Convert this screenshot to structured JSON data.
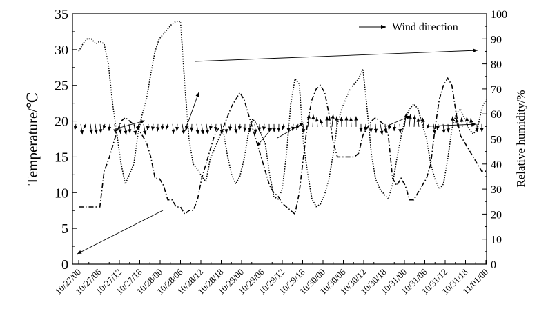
{
  "chart_data": {
    "type": "line",
    "title": "",
    "xlabel": "",
    "ylabel": "Temperature/℃",
    "y2label": "Relative humidity/%",
    "ylim": [
      0,
      35
    ],
    "y2lim": [
      0,
      100
    ],
    "y_ticks": [
      "0",
      "5",
      "10",
      "15",
      "20",
      "25",
      "30",
      "35"
    ],
    "y2_ticks": [
      "0",
      "10",
      "20",
      "30",
      "40",
      "50",
      "60",
      "70",
      "80",
      "90",
      "100"
    ],
    "x_ticks": [
      "10/27/00",
      "10/27/06",
      "10/27/12",
      "10/27/18",
      "10/28/00",
      "10/28/06",
      "10/28/12",
      "10/28/18",
      "10/29/00",
      "10/29/06",
      "10/29/12",
      "10/29/18",
      "10/30/00",
      "10/30/06",
      "10/30/12",
      "10/30/18",
      "10/31/00",
      "10/31/06",
      "10/31/12",
      "10/31/18",
      "11/01/00"
    ],
    "legend": {
      "label": "Wind direction",
      "placement": "top-right"
    },
    "series": [
      {
        "style": "dotted",
        "axis": "right",
        "x": [
          0,
          1,
          2,
          3,
          4,
          5,
          6,
          7,
          8,
          9,
          10,
          11,
          12,
          13,
          14,
          15,
          16,
          17,
          18,
          19,
          20,
          21,
          22,
          23,
          24,
          25,
          26,
          27,
          28,
          29,
          30,
          31,
          32,
          33,
          34,
          35,
          36,
          37,
          38,
          39,
          40,
          41,
          42,
          43,
          44,
          45,
          46,
          47,
          48,
          49,
          50,
          51,
          52,
          53,
          54,
          55,
          56,
          57,
          58,
          59,
          60,
          61,
          62,
          63,
          64,
          65,
          66,
          67,
          68,
          69,
          70,
          71,
          72,
          73,
          74,
          75,
          76,
          77,
          78,
          79,
          80,
          81,
          82,
          83,
          84,
          85,
          86,
          87,
          88,
          89,
          90,
          91,
          92,
          93,
          94,
          95,
          96
        ],
        "values": [
          85,
          88,
          90,
          90,
          88,
          89,
          88,
          80,
          64,
          52,
          40,
          32,
          36,
          40,
          52,
          60,
          66,
          76,
          85,
          90,
          92,
          94,
          96,
          97,
          97,
          72,
          50,
          40,
          38,
          35,
          33,
          42,
          46,
          50,
          54,
          44,
          36,
          32,
          35,
          42,
          52,
          58,
          56,
          52,
          48,
          36,
          27,
          26,
          30,
          44,
          64,
          74,
          72,
          48,
          36,
          26,
          23,
          24,
          28,
          34,
          44,
          56,
          62,
          66,
          70,
          72,
          74,
          78,
          62,
          44,
          34,
          30,
          28,
          26,
          32,
          42,
          51,
          58,
          62,
          64,
          62,
          56,
          50,
          40,
          34,
          30,
          32,
          42,
          54,
          60,
          62,
          58,
          54,
          52,
          54,
          62,
          66
        ]
      },
      {
        "style": "dash-dot",
        "axis": "left",
        "x": [
          0,
          1,
          2,
          3,
          4,
          5,
          6,
          7,
          8,
          9,
          10,
          11,
          12,
          13,
          14,
          15,
          16,
          17,
          18,
          19,
          20,
          21,
          22,
          23,
          24,
          25,
          26,
          27,
          28,
          29,
          30,
          31,
          32,
          33,
          34,
          35,
          36,
          37,
          38,
          39,
          40,
          41,
          42,
          43,
          44,
          45,
          46,
          47,
          48,
          49,
          50,
          51,
          52,
          53,
          54,
          55,
          56,
          57,
          58,
          59,
          60,
          61,
          62,
          63,
          64,
          65,
          66,
          67,
          68,
          69,
          70,
          71,
          72,
          73,
          74,
          75,
          76,
          77,
          78,
          79,
          80,
          81,
          82,
          83,
          84,
          85,
          86,
          87,
          88,
          89,
          90,
          91,
          92,
          93,
          94,
          95,
          96
        ],
        "values": [
          8,
          8,
          8,
          8,
          8,
          8,
          13,
          14.5,
          16.5,
          18.5,
          20,
          20.5,
          20,
          19.5,
          19,
          18,
          17,
          15,
          12,
          12,
          11,
          9,
          9,
          8,
          8,
          7,
          7.5,
          7.5,
          9,
          12,
          14,
          16,
          18,
          19,
          19,
          20.5,
          22,
          23,
          24,
          23,
          21,
          19,
          17,
          15,
          13,
          11,
          10,
          9.5,
          8.5,
          8,
          7.5,
          7,
          10,
          15,
          20,
          23,
          24.5,
          25,
          24,
          21,
          17,
          15,
          15,
          15,
          15,
          15,
          15.5,
          18,
          19,
          20,
          20.5,
          20,
          19.5,
          18,
          12,
          11,
          12,
          11,
          9,
          9,
          10,
          11,
          12,
          14,
          19,
          23,
          25,
          26,
          25,
          21,
          18,
          17,
          16,
          15,
          14,
          13,
          13
        ]
      }
    ]
  }
}
